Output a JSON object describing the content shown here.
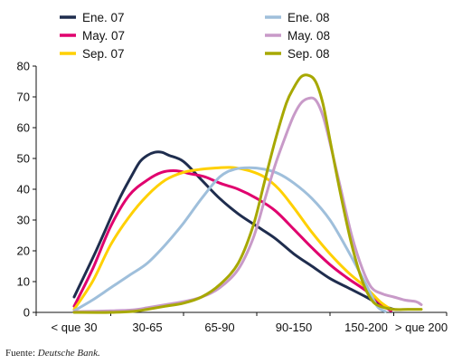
{
  "chart_data": {
    "type": "line",
    "categories": [
      "< que 30",
      "30-65",
      "65-90",
      "90-150",
      "150-200",
      "> que 200"
    ],
    "x_range": [
      0,
      5
    ],
    "ylim": [
      0,
      80
    ],
    "yticks": [
      0,
      10,
      20,
      30,
      40,
      50,
      60,
      70,
      80
    ],
    "grid": false,
    "legend_position": "top",
    "series": [
      {
        "name": "Ene. 07",
        "color": "#1f2d4e",
        "points": [
          [
            0,
            5
          ],
          [
            0.3,
            20
          ],
          [
            0.6,
            36
          ],
          [
            0.8,
            45
          ],
          [
            0.9,
            49
          ],
          [
            1.0,
            51
          ],
          [
            1.1,
            52
          ],
          [
            1.2,
            52
          ],
          [
            1.3,
            51
          ],
          [
            1.5,
            49
          ],
          [
            1.75,
            43
          ],
          [
            2.0,
            37
          ],
          [
            2.25,
            32
          ],
          [
            2.5,
            28
          ],
          [
            2.75,
            24
          ],
          [
            3.0,
            19
          ],
          [
            3.25,
            15
          ],
          [
            3.5,
            11
          ],
          [
            3.75,
            8
          ],
          [
            4.0,
            5
          ],
          [
            4.25,
            2.5
          ],
          [
            4.5,
            1
          ]
        ]
      },
      {
        "name": "May. 07",
        "color": "#e0006e",
        "points": [
          [
            0,
            2
          ],
          [
            0.25,
            14
          ],
          [
            0.5,
            28
          ],
          [
            0.75,
            38
          ],
          [
            1.0,
            43
          ],
          [
            1.2,
            45.5
          ],
          [
            1.4,
            46
          ],
          [
            1.6,
            45
          ],
          [
            1.8,
            44
          ],
          [
            2.0,
            42
          ],
          [
            2.25,
            40
          ],
          [
            2.5,
            37
          ],
          [
            2.75,
            33
          ],
          [
            3.0,
            27
          ],
          [
            3.25,
            21
          ],
          [
            3.5,
            15.5
          ],
          [
            3.75,
            11
          ],
          [
            4.0,
            7
          ],
          [
            4.25,
            3
          ],
          [
            4.45,
            0.5
          ]
        ]
      },
      {
        "name": "Sep. 07",
        "color": "#ffd000",
        "points": [
          [
            0,
            1
          ],
          [
            0.25,
            10
          ],
          [
            0.5,
            22
          ],
          [
            0.75,
            31
          ],
          [
            1.0,
            38
          ],
          [
            1.25,
            43
          ],
          [
            1.5,
            45.5
          ],
          [
            1.75,
            46.5
          ],
          [
            2.0,
            47
          ],
          [
            2.2,
            47
          ],
          [
            2.4,
            46
          ],
          [
            2.6,
            44
          ],
          [
            2.8,
            40
          ],
          [
            3.0,
            34
          ],
          [
            3.25,
            26
          ],
          [
            3.5,
            19
          ],
          [
            3.75,
            13
          ],
          [
            4.0,
            8
          ],
          [
            4.25,
            3.5
          ],
          [
            4.45,
            1
          ]
        ]
      },
      {
        "name": "Ene. 08",
        "color": "#9fbfdb",
        "points": [
          [
            0,
            0.5
          ],
          [
            0.25,
            4
          ],
          [
            0.5,
            8
          ],
          [
            0.75,
            12
          ],
          [
            1.0,
            16
          ],
          [
            1.25,
            22
          ],
          [
            1.5,
            29
          ],
          [
            1.75,
            37
          ],
          [
            2.0,
            44
          ],
          [
            2.2,
            46.5
          ],
          [
            2.4,
            47
          ],
          [
            2.6,
            46.5
          ],
          [
            2.8,
            45
          ],
          [
            3.0,
            42
          ],
          [
            3.25,
            37
          ],
          [
            3.5,
            30
          ],
          [
            3.75,
            20
          ],
          [
            4.0,
            9
          ],
          [
            4.2,
            2
          ],
          [
            4.35,
            0.3
          ]
        ]
      },
      {
        "name": "May. 08",
        "color": "#c89ac8",
        "points": [
          [
            0,
            0.2
          ],
          [
            0.5,
            0.5
          ],
          [
            0.8,
            0.8
          ],
          [
            1.0,
            1.5
          ],
          [
            1.25,
            2.5
          ],
          [
            1.5,
            3.5
          ],
          [
            1.75,
            5
          ],
          [
            2.0,
            8
          ],
          [
            2.25,
            14
          ],
          [
            2.45,
            24
          ],
          [
            2.6,
            36
          ],
          [
            2.75,
            48
          ],
          [
            2.9,
            58
          ],
          [
            3.0,
            64
          ],
          [
            3.1,
            68
          ],
          [
            3.2,
            69.5
          ],
          [
            3.3,
            69
          ],
          [
            3.4,
            64
          ],
          [
            3.5,
            55
          ],
          [
            3.65,
            40
          ],
          [
            3.8,
            25
          ],
          [
            3.95,
            14
          ],
          [
            4.1,
            8
          ],
          [
            4.3,
            6
          ],
          [
            4.5,
            5
          ],
          [
            4.7,
            4
          ],
          [
            4.9,
            3.5
          ],
          [
            5.0,
            2.5
          ]
        ]
      },
      {
        "name": "Sep. 08",
        "color": "#a7a800",
        "points": [
          [
            0,
            0
          ],
          [
            0.5,
            0
          ],
          [
            0.8,
            0.3
          ],
          [
            1.0,
            1
          ],
          [
            1.25,
            2
          ],
          [
            1.5,
            3
          ],
          [
            1.75,
            5
          ],
          [
            2.0,
            9
          ],
          [
            2.25,
            16
          ],
          [
            2.45,
            28
          ],
          [
            2.6,
            42
          ],
          [
            2.75,
            56
          ],
          [
            2.9,
            68
          ],
          [
            3.0,
            73
          ],
          [
            3.1,
            76.5
          ],
          [
            3.2,
            77
          ],
          [
            3.3,
            75
          ],
          [
            3.4,
            68
          ],
          [
            3.5,
            56
          ],
          [
            3.65,
            38
          ],
          [
            3.8,
            22
          ],
          [
            3.95,
            10
          ],
          [
            4.1,
            4
          ],
          [
            4.25,
            2
          ],
          [
            4.5,
            1
          ],
          [
            4.75,
            1
          ],
          [
            5.0,
            1
          ]
        ]
      }
    ]
  },
  "source": {
    "prefix": "Fuente: ",
    "name": "Deutsche Bank."
  }
}
